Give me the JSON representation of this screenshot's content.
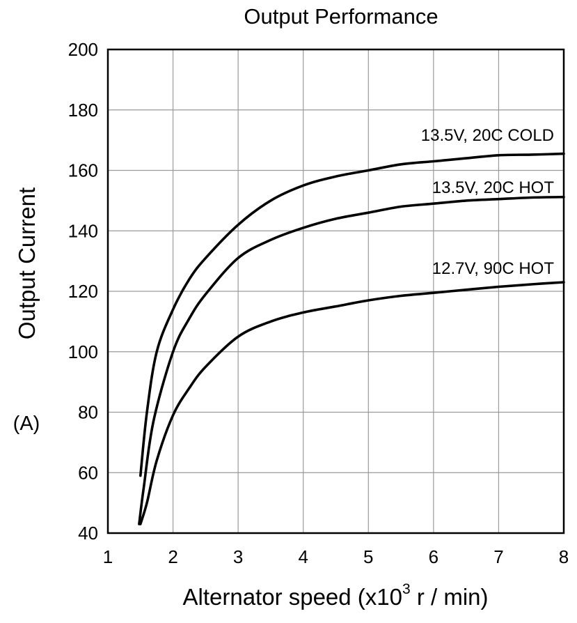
{
  "chart_data": {
    "type": "line",
    "title": "Output Performance",
    "xlabel": "Alternator speed (x10",
    "xlabel_exponent": "3",
    "xlabel_suffix": " r / min)",
    "ylabel": "Output Current",
    "yunit": "(A)",
    "xlim": [
      1,
      8
    ],
    "ylim": [
      40,
      200
    ],
    "xticks": [
      "1",
      "2",
      "3",
      "4",
      "5",
      "6",
      "7",
      "8"
    ],
    "yticks": [
      "40",
      "60",
      "80",
      "100",
      "120",
      "140",
      "160",
      "180",
      "200"
    ],
    "grid": true,
    "line_color": "#000000",
    "series": [
      {
        "name": "13.5V, 20C COLD",
        "x": [
          1.5,
          1.6,
          1.75,
          2.0,
          2.25,
          2.5,
          3.0,
          3.5,
          4.0,
          4.5,
          5.0,
          5.5,
          6.0,
          6.5,
          7.0,
          7.5,
          8.0
        ],
        "y": [
          59,
          80,
          100,
          114,
          124,
          131,
          142,
          150,
          155,
          158,
          160,
          162,
          163,
          164,
          165,
          165.2,
          165.5
        ]
      },
      {
        "name": "13.5V, 20C HOT",
        "x": [
          1.48,
          1.55,
          1.7,
          2.0,
          2.25,
          2.5,
          3.0,
          3.5,
          4.0,
          4.5,
          5.0,
          5.5,
          6.0,
          6.5,
          7.0,
          7.5,
          8.0
        ],
        "y": [
          43,
          55,
          77,
          100,
          111,
          119,
          131,
          137,
          141,
          144,
          146,
          148,
          149,
          150,
          150.5,
          151,
          151.2
        ]
      },
      {
        "name": "12.7V, 90C HOT",
        "x": [
          1.5,
          1.6,
          1.75,
          2.0,
          2.25,
          2.5,
          3.0,
          3.5,
          4.0,
          4.5,
          5.0,
          5.5,
          6.0,
          6.5,
          7.0,
          7.5,
          8.0
        ],
        "y": [
          43,
          50,
          64,
          79,
          88,
          95,
          105,
          110,
          113,
          115,
          117,
          118.5,
          119.5,
          120.5,
          121.5,
          122.3,
          123
        ]
      }
    ]
  }
}
